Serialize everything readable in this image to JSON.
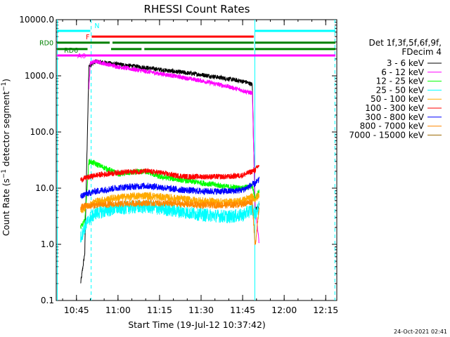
{
  "chart_data": {
    "type": "line",
    "title": "RHESSI Count Rates",
    "xlabel": "Start Time (19-Jul-12 10:37:42)",
    "ylabel_main": "Count Rate (s",
    "ylabel_sup": "−1",
    "ylabel_mid": " detector segment",
    "ylabel_end": ")",
    "yscale": "log",
    "ylim": [
      0.1,
      10000
    ],
    "xlim_minutes": [
      37.7,
      139
    ],
    "x_tick_minutes": [
      45,
      60,
      75,
      90,
      105,
      120,
      135
    ],
    "x_tick_labels": [
      "10:45",
      "11:00",
      "11:15",
      "11:30",
      "11:45",
      "12:00",
      "12:15"
    ],
    "y_tick_values": [
      0.1,
      1,
      10,
      100,
      1000,
      10000
    ],
    "y_tick_labels": [
      "0.1",
      "1.0",
      "10.0",
      "100.0",
      "1000.0",
      "10000.0"
    ],
    "legend_header": [
      "Det 1f,3f,5f,6f,9f,",
      "FDecim 4"
    ],
    "legend_placement": "right",
    "series": [
      {
        "name": "3 - 6 keV",
        "color": "#000000",
        "points": [
          [
            46.5,
            0.2
          ],
          [
            48,
            0.7
          ],
          [
            49.5,
            1500
          ],
          [
            52,
            1800
          ],
          [
            60,
            1600
          ],
          [
            70,
            1400
          ],
          [
            80,
            1200
          ],
          [
            90,
            1050
          ],
          [
            100,
            880
          ],
          [
            106,
            780
          ],
          [
            108.5,
            700
          ],
          [
            109.5,
            4
          ],
          [
            111,
            5
          ]
        ]
      },
      {
        "name": "6 - 12 keV",
        "color": "#ff00ff",
        "points": [
          [
            49.5,
            600
          ],
          [
            50,
            1700
          ],
          [
            52,
            1800
          ],
          [
            60,
            1450
          ],
          [
            70,
            1200
          ],
          [
            80,
            1000
          ],
          [
            90,
            820
          ],
          [
            100,
            640
          ],
          [
            106,
            530
          ],
          [
            108.5,
            490
          ],
          [
            109.5,
            5
          ],
          [
            111,
            1
          ]
        ]
      },
      {
        "name": "12 - 25 keV",
        "color": "#00ff00",
        "points": [
          [
            46.5,
            2.0
          ],
          [
            48,
            2.6
          ],
          [
            49.5,
            30
          ],
          [
            52,
            27
          ],
          [
            60,
            18
          ],
          [
            70,
            20
          ],
          [
            75,
            16
          ],
          [
            85,
            13.5
          ],
          [
            95,
            11.5
          ],
          [
            100,
            10.5
          ],
          [
            105,
            10
          ],
          [
            108.5,
            11
          ],
          [
            109.5,
            6.5
          ],
          [
            111,
            9
          ]
        ]
      },
      {
        "name": "25 - 50 keV",
        "color": "#00ffff",
        "points": [
          [
            46.5,
            1.3
          ],
          [
            48,
            2.0
          ],
          [
            49.5,
            2.8
          ],
          [
            52,
            3.6
          ],
          [
            60,
            4.4
          ],
          [
            70,
            4.7
          ],
          [
            80,
            4.0
          ],
          [
            90,
            3.4
          ],
          [
            100,
            3.1
          ],
          [
            105,
            3.3
          ],
          [
            108.5,
            4.2
          ],
          [
            109.5,
            3.5
          ],
          [
            111,
            4.5
          ]
        ]
      },
      {
        "name": "50 - 100 keV",
        "color": "#ffaa00",
        "points": [
          [
            46.5,
            4.0
          ],
          [
            48,
            4.5
          ],
          [
            52,
            5.8
          ],
          [
            60,
            6.8
          ],
          [
            70,
            7.4
          ],
          [
            80,
            6.6
          ],
          [
            90,
            5.9
          ],
          [
            100,
            5.6
          ],
          [
            105,
            6.0
          ],
          [
            108.5,
            7.0
          ],
          [
            109.5,
            6.5
          ],
          [
            111,
            7.5
          ]
        ]
      },
      {
        "name": "100 - 300 keV",
        "color": "#ff0000",
        "points": [
          [
            46.5,
            14
          ],
          [
            48,
            15
          ],
          [
            52,
            17
          ],
          [
            60,
            19
          ],
          [
            70,
            20
          ],
          [
            75,
            19
          ],
          [
            80,
            17
          ],
          [
            85,
            16
          ],
          [
            90,
            16
          ],
          [
            100,
            16
          ],
          [
            105,
            17
          ],
          [
            108.5,
            20
          ],
          [
            109.5,
            21
          ],
          [
            111,
            26
          ]
        ]
      },
      {
        "name": "300 - 800 keV",
        "color": "#0000ff",
        "points": [
          [
            46.5,
            7
          ],
          [
            48,
            7.8
          ],
          [
            52,
            8.8
          ],
          [
            60,
            10.2
          ],
          [
            70,
            11
          ],
          [
            75,
            10.5
          ],
          [
            80,
            9.6
          ],
          [
            90,
            8.8
          ],
          [
            100,
            8.8
          ],
          [
            105,
            9.3
          ],
          [
            108.5,
            11.5
          ],
          [
            109.5,
            12
          ],
          [
            111,
            14
          ]
        ]
      },
      {
        "name": "800 - 7000 keV",
        "color": "#ff8800",
        "points": [
          [
            46.5,
            4.5
          ],
          [
            48,
            4.8
          ],
          [
            52,
            5.0
          ],
          [
            60,
            5.2
          ],
          [
            70,
            5.5
          ],
          [
            80,
            5.3
          ],
          [
            90,
            5.0
          ],
          [
            100,
            5.0
          ],
          [
            105,
            5.2
          ],
          [
            108.5,
            5.8
          ],
          [
            109.5,
            0.9
          ],
          [
            111,
            5
          ]
        ]
      },
      {
        "name": "7000 - 15000 keV",
        "color": "#996600",
        "points": []
      }
    ],
    "state_bars": [
      {
        "label": "N",
        "color": "#00ffff",
        "segments": [
          [
            38,
            50
          ],
          [
            109.5,
            138.5
          ]
        ],
        "y": 6300
      },
      {
        "label": "F",
        "color": "#ff0000",
        "segments": [
          [
            50.5,
            109
          ]
        ],
        "y": 5000
      },
      {
        "label": "RD0",
        "color": "#008000",
        "segments": [
          [
            38,
            57
          ],
          [
            58,
            109
          ],
          [
            109.5,
            138.5
          ]
        ],
        "y": 3900
      },
      {
        "label": "RD6",
        "color": "#008000",
        "segments": [
          [
            38,
            49
          ],
          [
            57.5,
            68.5
          ],
          [
            69.5,
            109
          ],
          [
            109.5,
            138.5
          ]
        ],
        "y": 3000
      },
      {
        "label": "A0",
        "color": "#ff00ff",
        "segments": [
          [
            38,
            138.5
          ]
        ],
        "y": 2300
      }
    ],
    "vertical_markers": [
      {
        "x": 38.1,
        "color": "#00ffff",
        "style": "solid"
      },
      {
        "x": 50.3,
        "color": "#00ffff",
        "style": "dashed"
      },
      {
        "x": 109.4,
        "color": "#00ffff",
        "style": "solid"
      },
      {
        "x": 138.3,
        "color": "#00ffff",
        "style": "dashed"
      }
    ]
  },
  "footer": {
    "timestamp": "24-Oct-2021 02:41"
  }
}
